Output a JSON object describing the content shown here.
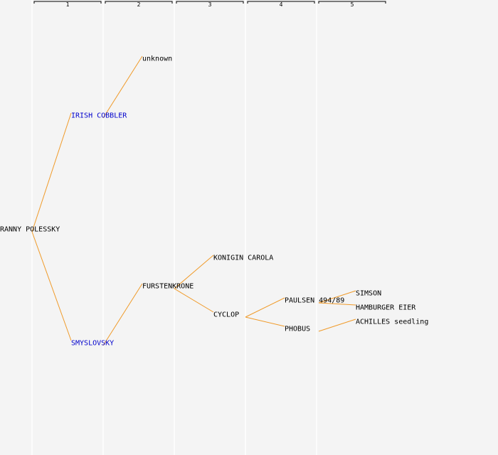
{
  "colors": {
    "background": "#f4f4f4",
    "edge": "#f09a28",
    "link_text": "#0000cc",
    "plain_text": "#000000"
  },
  "generations": [
    "1",
    "2",
    "3",
    "4",
    "5"
  ],
  "nodes": [
    {
      "id": "n0",
      "label": "RANNY POLESSKY",
      "gen": 0,
      "link": false
    },
    {
      "id": "n1",
      "label": "IRISH COBBLER",
      "gen": 1,
      "link": true
    },
    {
      "id": "n2",
      "label": "SMYSLOVSKY",
      "gen": 1,
      "link": true
    },
    {
      "id": "n3",
      "label": "unknown",
      "gen": 2,
      "link": false
    },
    {
      "id": "n4",
      "label": "FURSTENKRONE",
      "gen": 2,
      "link": false
    },
    {
      "id": "n5",
      "label": "KONIGIN CAROLA",
      "gen": 3,
      "link": false
    },
    {
      "id": "n6",
      "label": "CYCLOP",
      "gen": 3,
      "link": false
    },
    {
      "id": "n7",
      "label": "PAULSEN 494/89",
      "gen": 4,
      "link": false
    },
    {
      "id": "n8",
      "label": "PHOBUS",
      "gen": 4,
      "link": false
    },
    {
      "id": "n9",
      "label": "SIMSON",
      "gen": 5,
      "link": false
    },
    {
      "id": "n10",
      "label": "HAMBURGER EIER",
      "gen": 5,
      "link": false
    },
    {
      "id": "n11",
      "label": "ACHILLES seedling",
      "gen": 5,
      "link": false
    }
  ],
  "edges": [
    [
      "n0",
      "n1"
    ],
    [
      "n0",
      "n2"
    ],
    [
      "n1",
      "n3"
    ],
    [
      "n2",
      "n4"
    ],
    [
      "n4",
      "n5"
    ],
    [
      "n4",
      "n6"
    ],
    [
      "n6",
      "n7"
    ],
    [
      "n6",
      "n8"
    ],
    [
      "n7",
      "n9"
    ],
    [
      "n7",
      "n10"
    ],
    [
      "n8",
      "n11"
    ]
  ]
}
